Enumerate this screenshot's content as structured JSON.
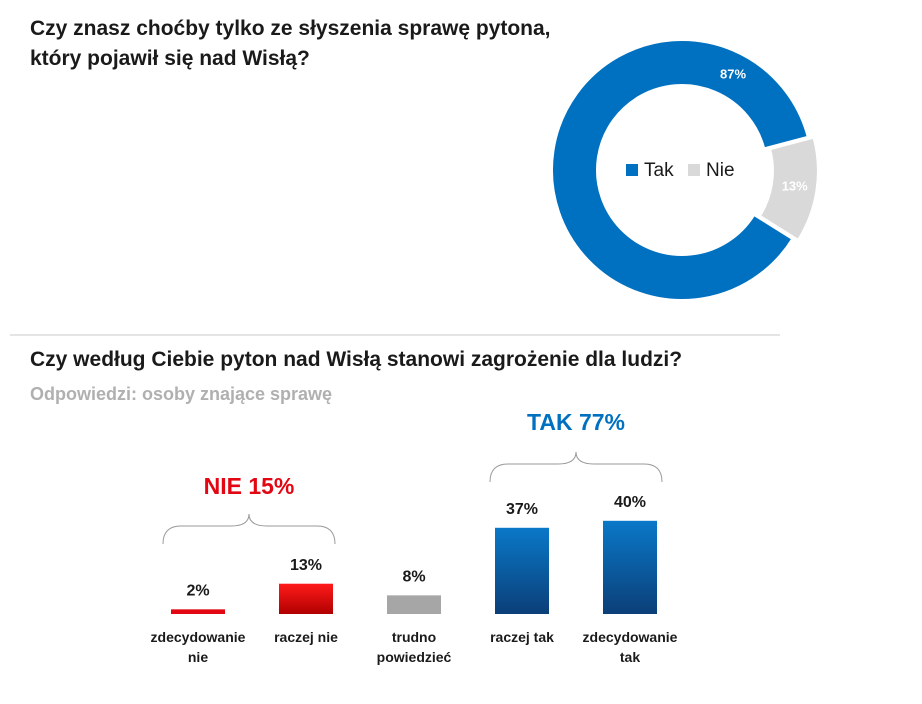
{
  "chart_data": [
    {
      "type": "donut",
      "title": "Czy znasz choćby tylko ze słyszenia sprawę pytona, który pojawił się nad Wisłą?",
      "categories": [
        "Tak",
        "Nie"
      ],
      "values": [
        87,
        13
      ],
      "value_labels": [
        "87%",
        "13%"
      ],
      "colors": [
        "#0070c0",
        "#d9d9d9"
      ],
      "legend": "center"
    },
    {
      "type": "bar",
      "title": "Czy według Ciebie pyton nad Wisłą stanowi zagrożenie dla ludzi?",
      "subtitle": "Odpowiedzi: osoby znające sprawę",
      "categories": [
        "zdecydowanie nie",
        "raczej nie",
        "trudno powiedzieć",
        "raczej tak",
        "zdecydowanie tak"
      ],
      "values": [
        2,
        13,
        8,
        37,
        40
      ],
      "value_labels": [
        "2%",
        "13%",
        "8%",
        "37%",
        "40%"
      ],
      "colors": [
        "#e30613",
        "#e30613",
        "#a6a6a6",
        "#0070c0",
        "#0070c0"
      ],
      "annotations": [
        {
          "text": "NIE 15%",
          "color": "#e30613"
        },
        {
          "text": "TAK 77%",
          "color": "#0070c0"
        }
      ]
    }
  ]
}
